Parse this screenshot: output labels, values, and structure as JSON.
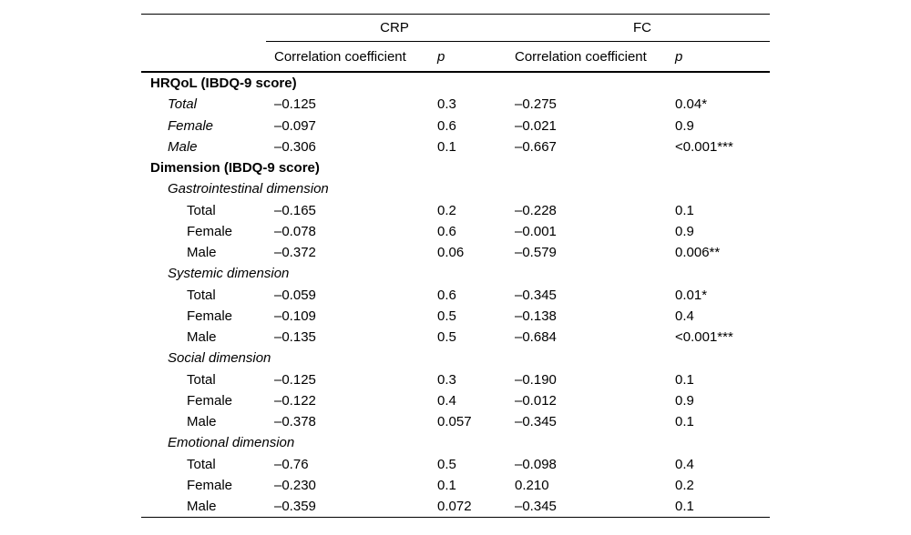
{
  "table": {
    "col_groups": [
      {
        "label": "CRP"
      },
      {
        "label": "FC"
      }
    ],
    "sub_headers": [
      "Correlation coefficient",
      "p",
      "Correlation coefficient",
      "p"
    ],
    "rows": [
      {
        "label": "HRQoL (IBDQ-9 score)",
        "level": 0,
        "style": "bold",
        "values": null
      },
      {
        "label": "Total",
        "level": 1,
        "style": "italic",
        "values": [
          "–0.125",
          "0.3",
          "–0.275",
          "0.04*"
        ]
      },
      {
        "label": "Female",
        "level": 1,
        "style": "italic",
        "values": [
          "–0.097",
          "0.6",
          "–0.021",
          "0.9"
        ]
      },
      {
        "label": "Male",
        "level": 1,
        "style": "italic",
        "values": [
          "–0.306",
          "0.1",
          "–0.667",
          "<0.001***"
        ]
      },
      {
        "label": "Dimension (IBDQ-9 score)",
        "level": 0,
        "style": "bold",
        "values": null
      },
      {
        "label": "Gastrointestinal dimension",
        "level": 1,
        "style": "italic",
        "values": null
      },
      {
        "label": "Total",
        "level": 2,
        "style": "plain",
        "values": [
          "–0.165",
          "0.2",
          "–0.228",
          "0.1"
        ]
      },
      {
        "label": "Female",
        "level": 2,
        "style": "plain",
        "values": [
          "–0.078",
          "0.6",
          "–0.001",
          "0.9"
        ]
      },
      {
        "label": "Male",
        "level": 2,
        "style": "plain",
        "values": [
          "–0.372",
          "0.06",
          "–0.579",
          "0.006**"
        ]
      },
      {
        "label": "Systemic dimension",
        "level": 1,
        "style": "italic",
        "values": null
      },
      {
        "label": "Total",
        "level": 2,
        "style": "plain",
        "values": [
          "–0.059",
          "0.6",
          "–0.345",
          "0.01*"
        ]
      },
      {
        "label": "Female",
        "level": 2,
        "style": "plain",
        "values": [
          "–0.109",
          "0.5",
          "–0.138",
          "0.4"
        ]
      },
      {
        "label": "Male",
        "level": 2,
        "style": "plain",
        "values": [
          "–0.135",
          "0.5",
          "–0.684",
          "<0.001***"
        ]
      },
      {
        "label": "Social dimension",
        "level": 1,
        "style": "italic",
        "values": null
      },
      {
        "label": "Total",
        "level": 2,
        "style": "plain",
        "values": [
          "–0.125",
          "0.3",
          "–0.190",
          "0.1"
        ]
      },
      {
        "label": "Female",
        "level": 2,
        "style": "plain",
        "values": [
          "–0.122",
          "0.4",
          "–0.012",
          "0.9"
        ]
      },
      {
        "label": "Male",
        "level": 2,
        "style": "plain",
        "values": [
          "–0.378",
          "0.057",
          "–0.345",
          "0.1"
        ]
      },
      {
        "label": "Emotional dimension",
        "level": 1,
        "style": "italic",
        "values": null
      },
      {
        "label": "Total",
        "level": 2,
        "style": "plain",
        "values": [
          "–0.76",
          "0.5",
          "–0.098",
          "0.4"
        ]
      },
      {
        "label": "Female",
        "level": 2,
        "style": "plain",
        "values": [
          "–0.230",
          "0.1",
          "0.210",
          "0.2"
        ]
      },
      {
        "label": "Male",
        "level": 2,
        "style": "plain",
        "values": [
          "–0.359",
          "0.072",
          "–0.345",
          "0.1"
        ]
      }
    ]
  }
}
